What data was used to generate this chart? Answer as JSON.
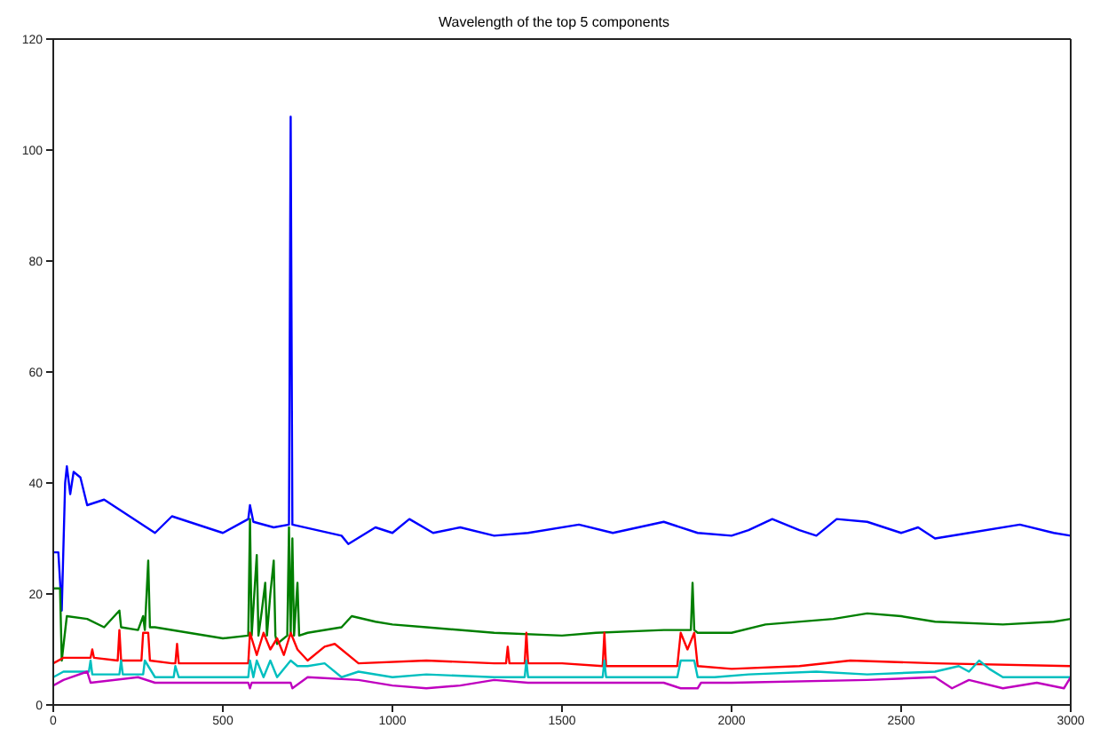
{
  "chart_data": {
    "type": "line",
    "title": "Wavelength of the top 5 components",
    "xlim": [
      0,
      3000
    ],
    "xticks": [
      0,
      500,
      1000,
      1500,
      2000,
      2500,
      3000
    ],
    "ylim": [
      0,
      120
    ],
    "yticks": [
      0,
      20,
      40,
      60,
      80,
      100,
      120
    ],
    "grid": false,
    "legend": false,
    "marker": "none",
    "line_style": "solid",
    "series": [
      {
        "color": "#0000ff",
        "x": [
          0,
          15,
          25,
          35,
          40,
          50,
          60,
          80,
          100,
          150,
          200,
          250,
          300,
          350,
          450,
          500,
          575,
          580,
          590,
          650,
          695,
          700,
          705,
          850,
          870,
          950,
          1000,
          1050,
          1120,
          1200,
          1300,
          1400,
          1550,
          1650,
          1800,
          1900,
          2000,
          2050,
          2120,
          2200,
          2250,
          2310,
          2400,
          2500,
          2550,
          2600,
          2700,
          2850,
          2950,
          3000
        ],
        "values": [
          27.5,
          27.5,
          17,
          40,
          43,
          38,
          42,
          41,
          36,
          37,
          35,
          33,
          31,
          34,
          32,
          31,
          33.5,
          36,
          33,
          32,
          32.5,
          106,
          32.5,
          30.5,
          29,
          32,
          31,
          33.5,
          31,
          32,
          30.5,
          31,
          32.5,
          31,
          33,
          31,
          30.5,
          31.5,
          33.5,
          31.5,
          30.5,
          33.5,
          33,
          31,
          32,
          30,
          31,
          32.5,
          31,
          30.5
        ]
      },
      {
        "color": "#007f00",
        "x": [
          0,
          20,
          25,
          40,
          100,
          150,
          195,
          200,
          250,
          265,
          270,
          280,
          285,
          300,
          400,
          500,
          575,
          580,
          585,
          600,
          605,
          615,
          625,
          630,
          640,
          650,
          655,
          660,
          690,
          695,
          700,
          705,
          710,
          720,
          725,
          750,
          850,
          880,
          950,
          1000,
          1100,
          1300,
          1500,
          1600,
          1800,
          1880,
          1885,
          1890,
          1900,
          2000,
          2100,
          2300,
          2400,
          2500,
          2600,
          2800,
          2950,
          3000
        ],
        "values": [
          21,
          21,
          8,
          16,
          15.5,
          14,
          17,
          14,
          13.5,
          16,
          13.5,
          26,
          14,
          14,
          13,
          12,
          12.5,
          33.5,
          12.5,
          27,
          12.5,
          17,
          22,
          12.5,
          20,
          26,
          12.5,
          11,
          12.5,
          32,
          12.5,
          30,
          12.5,
          22,
          12.5,
          13,
          14,
          16,
          15,
          14.5,
          14,
          13,
          12.5,
          13,
          13.5,
          13.5,
          22,
          13.5,
          13,
          13,
          14.5,
          15.5,
          16.5,
          16,
          15,
          14.5,
          15,
          15.5
        ]
      },
      {
        "color": "#ff0000",
        "x": [
          0,
          30,
          110,
          115,
          120,
          190,
          195,
          200,
          260,
          265,
          280,
          285,
          350,
          360,
          365,
          370,
          500,
          575,
          580,
          600,
          620,
          640,
          660,
          680,
          700,
          720,
          750,
          800,
          830,
          900,
          1100,
          1300,
          1335,
          1340,
          1345,
          1390,
          1395,
          1400,
          1500,
          1620,
          1625,
          1630,
          1700,
          1840,
          1850,
          1870,
          1890,
          1900,
          2000,
          2200,
          2350,
          2600,
          3000
        ],
        "values": [
          7.5,
          8.5,
          8.5,
          10,
          8.5,
          8,
          13.5,
          8,
          8,
          13,
          13,
          8,
          7.5,
          7.5,
          11,
          7.5,
          7.5,
          7.5,
          13,
          9,
          13,
          10,
          12,
          9,
          13,
          10,
          8,
          10.5,
          11,
          7.5,
          8,
          7.5,
          7.5,
          10.5,
          7.5,
          7.5,
          13,
          7.5,
          7.5,
          7,
          13,
          7,
          7,
          7,
          13,
          10,
          13,
          7,
          6.5,
          7,
          8,
          7.5,
          7
        ]
      },
      {
        "color": "#00bfbf",
        "x": [
          0,
          30,
          105,
          110,
          115,
          195,
          200,
          205,
          265,
          270,
          280,
          300,
          355,
          360,
          370,
          500,
          575,
          580,
          590,
          600,
          620,
          640,
          660,
          700,
          720,
          750,
          800,
          850,
          900,
          1000,
          1100,
          1300,
          1390,
          1395,
          1400,
          1500,
          1620,
          1625,
          1630,
          1700,
          1840,
          1850,
          1890,
          1900,
          1950,
          2050,
          2250,
          2400,
          2600,
          2670,
          2700,
          2730,
          2760,
          2800,
          3000
        ],
        "values": [
          5,
          6,
          6,
          8,
          5.5,
          5.5,
          8,
          5.5,
          5.5,
          8,
          7,
          5,
          5,
          7,
          5,
          5,
          5,
          8,
          5,
          8,
          5,
          8,
          5,
          8,
          7,
          7,
          7.5,
          5,
          6,
          5,
          5.5,
          5,
          5,
          8,
          5,
          5,
          5,
          8,
          5,
          5,
          5,
          8,
          8,
          5,
          5,
          5.5,
          6,
          5.5,
          6,
          7,
          6,
          8,
          6.5,
          5,
          5
        ]
      },
      {
        "color": "#bf00bf",
        "x": [
          0,
          30,
          100,
          110,
          250,
          300,
          400,
          575,
          580,
          585,
          700,
          705,
          750,
          900,
          1000,
          1100,
          1200,
          1300,
          1400,
          1600,
          1800,
          1850,
          1900,
          1910,
          2000,
          2400,
          2600,
          2650,
          2700,
          2800,
          2900,
          2980,
          3000
        ],
        "values": [
          3.5,
          4.5,
          6,
          4,
          5,
          4,
          4,
          4,
          3,
          4,
          4,
          3,
          5,
          4.5,
          3.5,
          3,
          3.5,
          4.5,
          4,
          4,
          4,
          3,
          3,
          4,
          4,
          4.5,
          5,
          3,
          4.5,
          3,
          4,
          3,
          5
        ]
      }
    ]
  }
}
